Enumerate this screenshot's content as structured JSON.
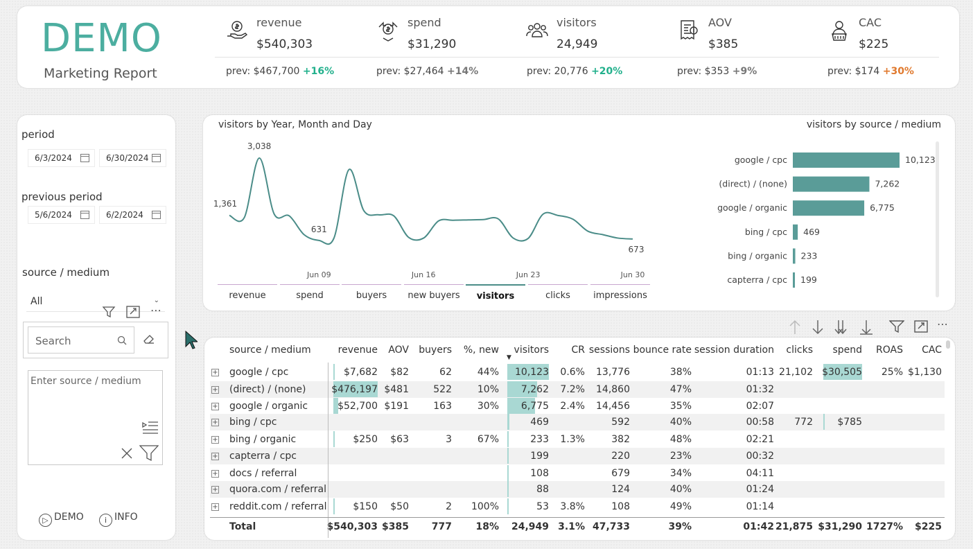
{
  "header": {
    "logo": "DEMO",
    "subtitle": "Marketing Report",
    "kpis": [
      {
        "name": "revenue",
        "value": "$540,303",
        "prev": "prev: $467,700",
        "change": "+16%",
        "trend": "up",
        "icon": "money-hand-icon"
      },
      {
        "name": "spend",
        "value": "$31,290",
        "prev": "prev: $27,464",
        "change": "+14%",
        "trend": "mid",
        "icon": "money-spend-icon"
      },
      {
        "name": "visitors",
        "value": "24,949",
        "prev": "prev: 20,776",
        "change": "+20%",
        "trend": "up",
        "icon": "people-icon"
      },
      {
        "name": "AOV",
        "value": "$385",
        "prev": "prev: $353",
        "change": "+9%",
        "trend": "mid",
        "icon": "invoice-icon"
      },
      {
        "name": "CAC",
        "value": "$225",
        "prev": "prev: $174",
        "change": "+30%",
        "trend": "bad",
        "icon": "customer-basket-icon"
      }
    ]
  },
  "sidebar": {
    "period_label": "period",
    "period_start": "6/3/2024",
    "period_end": "6/30/2024",
    "prev_label": "previous period",
    "prev_start": "5/6/2024",
    "prev_end": "6/2/2024",
    "source_label": "source / medium",
    "source_selected": "All",
    "search_placeholder": "Search",
    "textbox_placeholder": "Enter source / medium",
    "footer_demo": "DEMO",
    "footer_info": "INFO"
  },
  "chart": {
    "title_line": "visitors by Year, Month and Day",
    "title_bar": "visitors by source / medium",
    "nav": [
      "revenue",
      "spend",
      "buyers",
      "new buyers",
      "visitors",
      "clicks",
      "impressions"
    ],
    "nav_selected": "visitors"
  },
  "chart_data": [
    {
      "type": "line",
      "title": "visitors by Year, Month and Day",
      "x_ticks": [
        "Jun 09",
        "Jun 16",
        "Jun 23",
        "Jun 30"
      ],
      "x": [
        3,
        4,
        5,
        6,
        7,
        8,
        9,
        10,
        11,
        12,
        13,
        14,
        15,
        16,
        17,
        18,
        19,
        20,
        21,
        22,
        23,
        24,
        25,
        26,
        27,
        28,
        29,
        30
      ],
      "values": [
        1361,
        1300,
        3038,
        1400,
        1350,
        800,
        631,
        700,
        2700,
        1500,
        1380,
        1350,
        720,
        700,
        1200,
        1220,
        1230,
        1240,
        1260,
        700,
        690,
        1400,
        1360,
        1250,
        900,
        800,
        700,
        673
      ],
      "data_labels": {
        "first": "1,361",
        "peak": "3,038",
        "min": "631",
        "last": "673"
      },
      "series": [
        {
          "name": "visitors"
        }
      ]
    },
    {
      "type": "bar",
      "orientation": "horizontal",
      "title": "visitors by source / medium",
      "categories": [
        "google / cpc",
        "(direct) / (none)",
        "google / organic",
        "bing / cpc",
        "bing / organic",
        "capterra / cpc"
      ],
      "values": [
        10123,
        7262,
        6775,
        469,
        233,
        199
      ],
      "labels": [
        "10,123",
        "7,262",
        "6,775",
        "469",
        "233",
        "199"
      ],
      "xlim": [
        0,
        10123
      ]
    }
  ],
  "table": {
    "columns": [
      "source / medium",
      "revenue",
      "AOV",
      "buyers",
      "%, new",
      "visitors",
      "CR",
      "sessions",
      "bounce rate",
      "session duration",
      "clicks",
      "spend",
      "ROAS",
      "CAC"
    ],
    "rows": [
      [
        "google / cpc",
        "$7,682",
        "$82",
        "62",
        "44%",
        "10,123",
        "0.6%",
        "13,776",
        "38%",
        "01:13",
        "21,102",
        "$30,505",
        "25%",
        "$1,130"
      ],
      [
        "(direct) / (none)",
        "$476,197",
        "$481",
        "522",
        "10%",
        "7,262",
        "7.2%",
        "14,860",
        "47%",
        "01:32",
        "",
        "",
        "",
        ""
      ],
      [
        "google / organic",
        "$52,700",
        "$191",
        "163",
        "30%",
        "6,775",
        "2.4%",
        "14,456",
        "35%",
        "02:07",
        "",
        "",
        "",
        ""
      ],
      [
        "bing / cpc",
        "",
        "",
        "",
        "",
        "469",
        "",
        "592",
        "40%",
        "00:58",
        "772",
        "$785",
        "",
        ""
      ],
      [
        "bing / organic",
        "$250",
        "$63",
        "3",
        "67%",
        "233",
        "1.3%",
        "382",
        "48%",
        "02:21",
        "",
        "",
        "",
        ""
      ],
      [
        "capterra / cpc",
        "",
        "",
        "",
        "",
        "199",
        "",
        "220",
        "23%",
        "00:32",
        "",
        "",
        "",
        ""
      ],
      [
        "docs / referral",
        "",
        "",
        "",
        "",
        "108",
        "",
        "679",
        "34%",
        "04:11",
        "",
        "",
        "",
        ""
      ],
      [
        "quora.com / referral",
        "",
        "",
        "",
        "",
        "88",
        "",
        "124",
        "40%",
        "01:24",
        "",
        "",
        "",
        ""
      ],
      [
        "reddit.com / referral",
        "$150",
        "$50",
        "2",
        "100%",
        "53",
        "3.8%",
        "108",
        "49%",
        "01:14",
        "",
        "",
        "",
        ""
      ]
    ],
    "total": [
      "Total",
      "$540,303",
      "$385",
      "777",
      "18%",
      "24,949",
      "3.1%",
      "47,733",
      "39%",
      "01:42",
      "21,875",
      "$31,290",
      "1727%",
      "$225"
    ],
    "revenue_bar_fraction": [
      0.016,
      1.0,
      0.111,
      0,
      0.0005,
      0,
      0,
      0,
      0.0003
    ],
    "visitors_bar_fraction": [
      1.0,
      0.717,
      0.669,
      0.046,
      0.023,
      0.02,
      0.011,
      0.009,
      0.005
    ],
    "spend_bar_fraction": [
      1.0,
      0,
      0,
      0.026,
      0,
      0,
      0,
      0,
      0
    ]
  },
  "colors": {
    "accent": "#4caea0",
    "bar": "#5a9c98",
    "line": "#4a8c88",
    "data_bar": "#a9d8d3",
    "up": "#22b08c",
    "bad": "#e07a2f"
  }
}
